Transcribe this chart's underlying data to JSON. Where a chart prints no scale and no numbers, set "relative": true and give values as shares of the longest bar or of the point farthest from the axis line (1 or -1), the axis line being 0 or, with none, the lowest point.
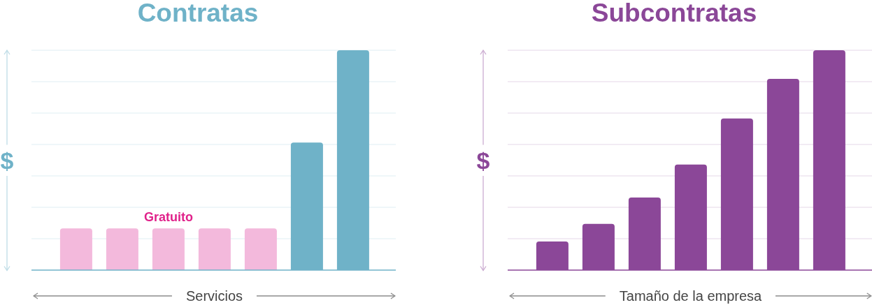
{
  "chart_data": [
    {
      "type": "bar",
      "title": "Contratas",
      "xlabel": "Servicios",
      "ylabel": "$",
      "categories": [
        null,
        null,
        null,
        null,
        null,
        null,
        null
      ],
      "relative": true,
      "stacked": true,
      "grid": "y",
      "series": [
        {
          "name": "Gratuito",
          "color": "#f3b9dc",
          "values": [
            0.19,
            0.19,
            0.19,
            0.19,
            0.19,
            null,
            null
          ]
        },
        {
          "color": "#6fb2c8",
          "values": [
            null,
            null,
            null,
            null,
            null,
            0.58,
            1
          ]
        }
      ]
    },
    {
      "type": "bar",
      "title": "Subcontratas",
      "xlabel": "Tamaño de la empresa",
      "ylabel": "$",
      "categories": [
        null,
        null,
        null,
        null,
        null,
        null,
        null
      ],
      "relative": true,
      "grid": "y",
      "color": "#8b4798",
      "values": [
        0.13,
        0.21,
        0.33,
        0.48,
        0.69,
        0.87,
        1
      ]
    }
  ]
}
